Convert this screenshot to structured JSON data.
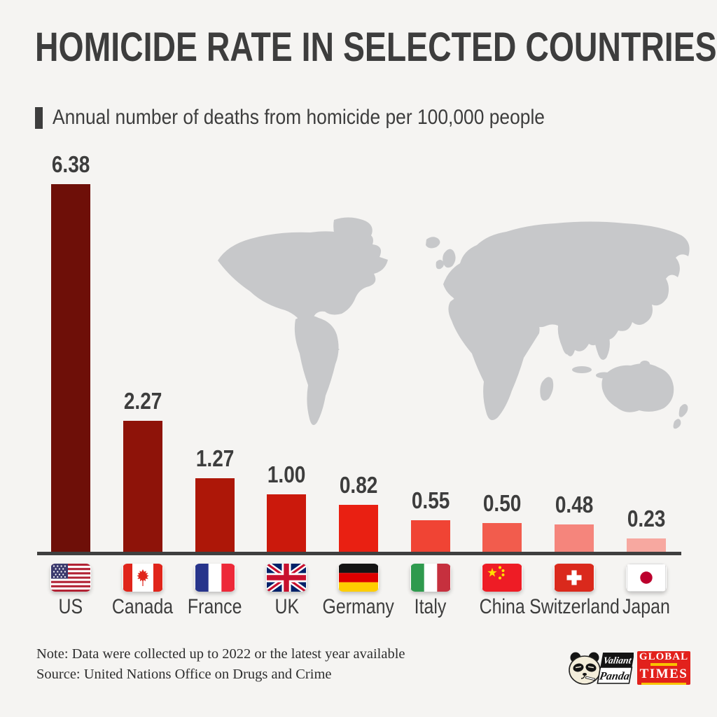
{
  "header": {
    "title": "HOMICIDE RATE IN SELECTED COUNTRIES",
    "subtitle": "Annual number of deaths from homicide per 100,000 people"
  },
  "chart_data": {
    "type": "bar",
    "title": "HOMICIDE RATE IN SELECTED COUNTRIES",
    "ylabel": "Annual number of deaths from homicide per 100,000 people",
    "categories": [
      "US",
      "Canada",
      "France",
      "UK",
      "Germany",
      "Italy",
      "China",
      "Switzerland",
      "Japan"
    ],
    "values": [
      6.38,
      2.27,
      1.27,
      1.0,
      0.82,
      0.55,
      0.5,
      0.48,
      0.23
    ],
    "value_labels": [
      "6.38",
      "2.27",
      "1.27",
      "1.00",
      "0.82",
      "0.55",
      "0.50",
      "0.48",
      "0.23"
    ],
    "bar_colors": [
      "#6e0f08",
      "#8e1309",
      "#ad1708",
      "#cb190c",
      "#e92012",
      "#f04434",
      "#f25c4d",
      "#f5857c",
      "#f7a8a0"
    ],
    "ylim": [
      0,
      6.38
    ],
    "grid": false,
    "legend": false,
    "flag_icons": [
      "us-flag-icon",
      "canada-flag-icon",
      "france-flag-icon",
      "uk-flag-icon",
      "germany-flag-icon",
      "italy-flag-icon",
      "china-flag-icon",
      "switzerland-flag-icon",
      "japan-flag-icon"
    ]
  },
  "footer": {
    "note": "Note: Data were collected up to 2022 or the latest year available",
    "source": "Source: United Nations Office on Drugs and Crime"
  },
  "logos": {
    "valiant_panda_line1": "Valiant",
    "valiant_panda_line2": "Panda",
    "global_times_line1": "GLOBAL",
    "global_times_line2": "TIMES"
  },
  "colors": {
    "background": "#f5f4f2",
    "text": "#3d3d3d",
    "axis": "#3f3f3f",
    "map": "#c7c8ca",
    "global_times_red": "#e2211c",
    "global_times_yellow": "#f8c300"
  }
}
